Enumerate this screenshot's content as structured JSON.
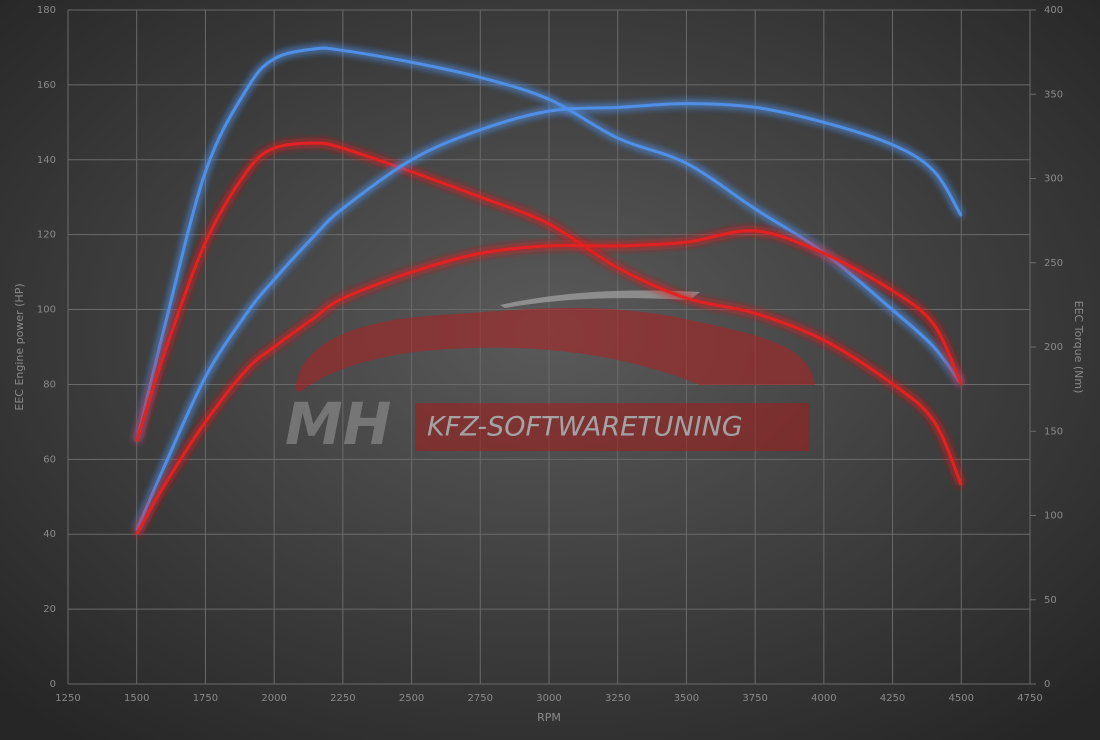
{
  "chart_data": {
    "type": "line",
    "x_label": "RPM",
    "y_label": "EEC Engine power (HP)",
    "y2_label": "EEC Torque (Nm)",
    "watermark": [
      "MH",
      "KFZ-SOFTWARETUNING"
    ],
    "x": [
      1500,
      1600,
      1750,
      1900,
      2000,
      2150,
      2250,
      2500,
      2750,
      3000,
      3250,
      3500,
      3750,
      4000,
      4250,
      4400,
      4500
    ],
    "xlim": [
      1250,
      4750
    ],
    "xticks": [
      1250,
      1500,
      1750,
      2000,
      2250,
      2500,
      2750,
      3000,
      3250,
      3500,
      3750,
      4000,
      4250,
      4500,
      4750
    ],
    "ylim": [
      0,
      180
    ],
    "yticks": [
      0,
      20,
      40,
      60,
      80,
      100,
      120,
      140,
      160,
      180
    ],
    "y2lim": [
      0,
      400
    ],
    "y2ticks": [
      0,
      50,
      100,
      150,
      200,
      250,
      300,
      350,
      400
    ],
    "grid": true,
    "series": [
      {
        "color": "#4f8fe6",
        "axis": "y2",
        "values": [
          144,
          211,
          304,
          353,
          371,
          377,
          376,
          369,
          360,
          347,
          324,
          309,
          282,
          256,
          222,
          200,
          178
        ]
      },
      {
        "color": "#e02424",
        "axis": "y2",
        "values": [
          144,
          196,
          262,
          304,
          318,
          321,
          318,
          304,
          289,
          273,
          247,
          229,
          220,
          204,
          178,
          156,
          118
        ]
      },
      {
        "color": "#4f8fe6",
        "axis": "y",
        "values": [
          41,
          58,
          82,
          99,
          108,
          120,
          127,
          140,
          148,
          153,
          154,
          155,
          154,
          150,
          144,
          137,
          125
        ]
      },
      {
        "color": "#e02424",
        "axis": "y",
        "values": [
          40,
          53,
          70,
          84,
          90,
          98,
          103,
          110,
          115,
          117,
          117,
          118,
          121,
          115,
          105,
          96,
          80
        ]
      }
    ]
  }
}
